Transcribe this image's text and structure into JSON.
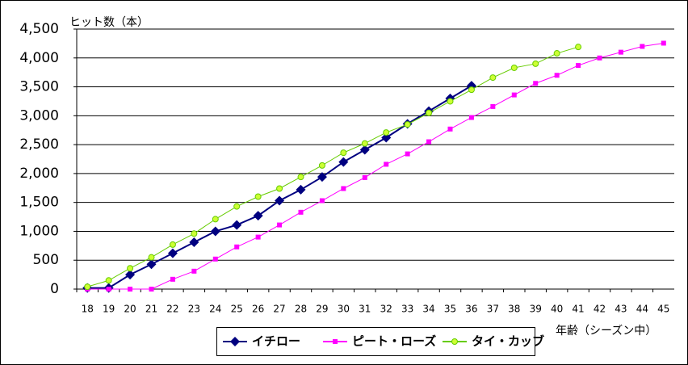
{
  "chart_data": {
    "type": "line",
    "y_label": "ヒット数（本）",
    "x_label": "年齢（シーズン中）",
    "categories": [
      "18",
      "19",
      "20",
      "21",
      "22",
      "23",
      "24",
      "25",
      "26",
      "27",
      "28",
      "29",
      "30",
      "31",
      "32",
      "33",
      "34",
      "35",
      "36",
      "37",
      "38",
      "39",
      "40",
      "41",
      "42",
      "43",
      "44",
      "45"
    ],
    "series": [
      {
        "name": "イチロー",
        "color": "#000080",
        "marker": "diamond",
        "values": [
          20,
          20,
          250,
          430,
          620,
          810,
          1000,
          1110,
          1270,
          1530,
          1720,
          1940,
          2200,
          2410,
          2620,
          2860,
          3080,
          3300,
          3520,
          null,
          null,
          null,
          null,
          null,
          null,
          null,
          null,
          null
        ]
      },
      {
        "name": "ピート・ローズ",
        "color": "#ff00ff",
        "marker": "square",
        "values": [
          0,
          0,
          0,
          0,
          170,
          310,
          520,
          730,
          900,
          1110,
          1330,
          1530,
          1740,
          1930,
          2160,
          2340,
          2550,
          2770,
          2970,
          3160,
          3360,
          3560,
          3700,
          3870,
          4000,
          4100,
          4200,
          4256
        ]
      },
      {
        "name": "タイ・カッブ",
        "color": "#66cc00",
        "marker": "circle",
        "values": [
          40,
          150,
          360,
          550,
          770,
          960,
          1210,
          1430,
          1600,
          1740,
          1940,
          2140,
          2360,
          2520,
          2710,
          2850,
          3050,
          3250,
          3450,
          3660,
          3830,
          3900,
          4080,
          4190,
          null,
          null,
          null,
          null
        ]
      }
    ],
    "ylim": [
      0,
      4500
    ],
    "yticks": [
      0,
      500,
      {
        "value": 1000,
        "label": "1,000"
      },
      {
        "value": 1500,
        "label": "1,500"
      },
      {
        "value": 2000,
        "label": "2,000"
      },
      {
        "value": 2500,
        "label": "2,500"
      },
      {
        "value": 3000,
        "label": "3,000"
      },
      {
        "value": 3500,
        "label": "3,500"
      },
      {
        "value": 4000,
        "label": "4,000"
      },
      {
        "value": 4500,
        "label": "4,500"
      }
    ],
    "grid": true,
    "legend": "bottom"
  }
}
